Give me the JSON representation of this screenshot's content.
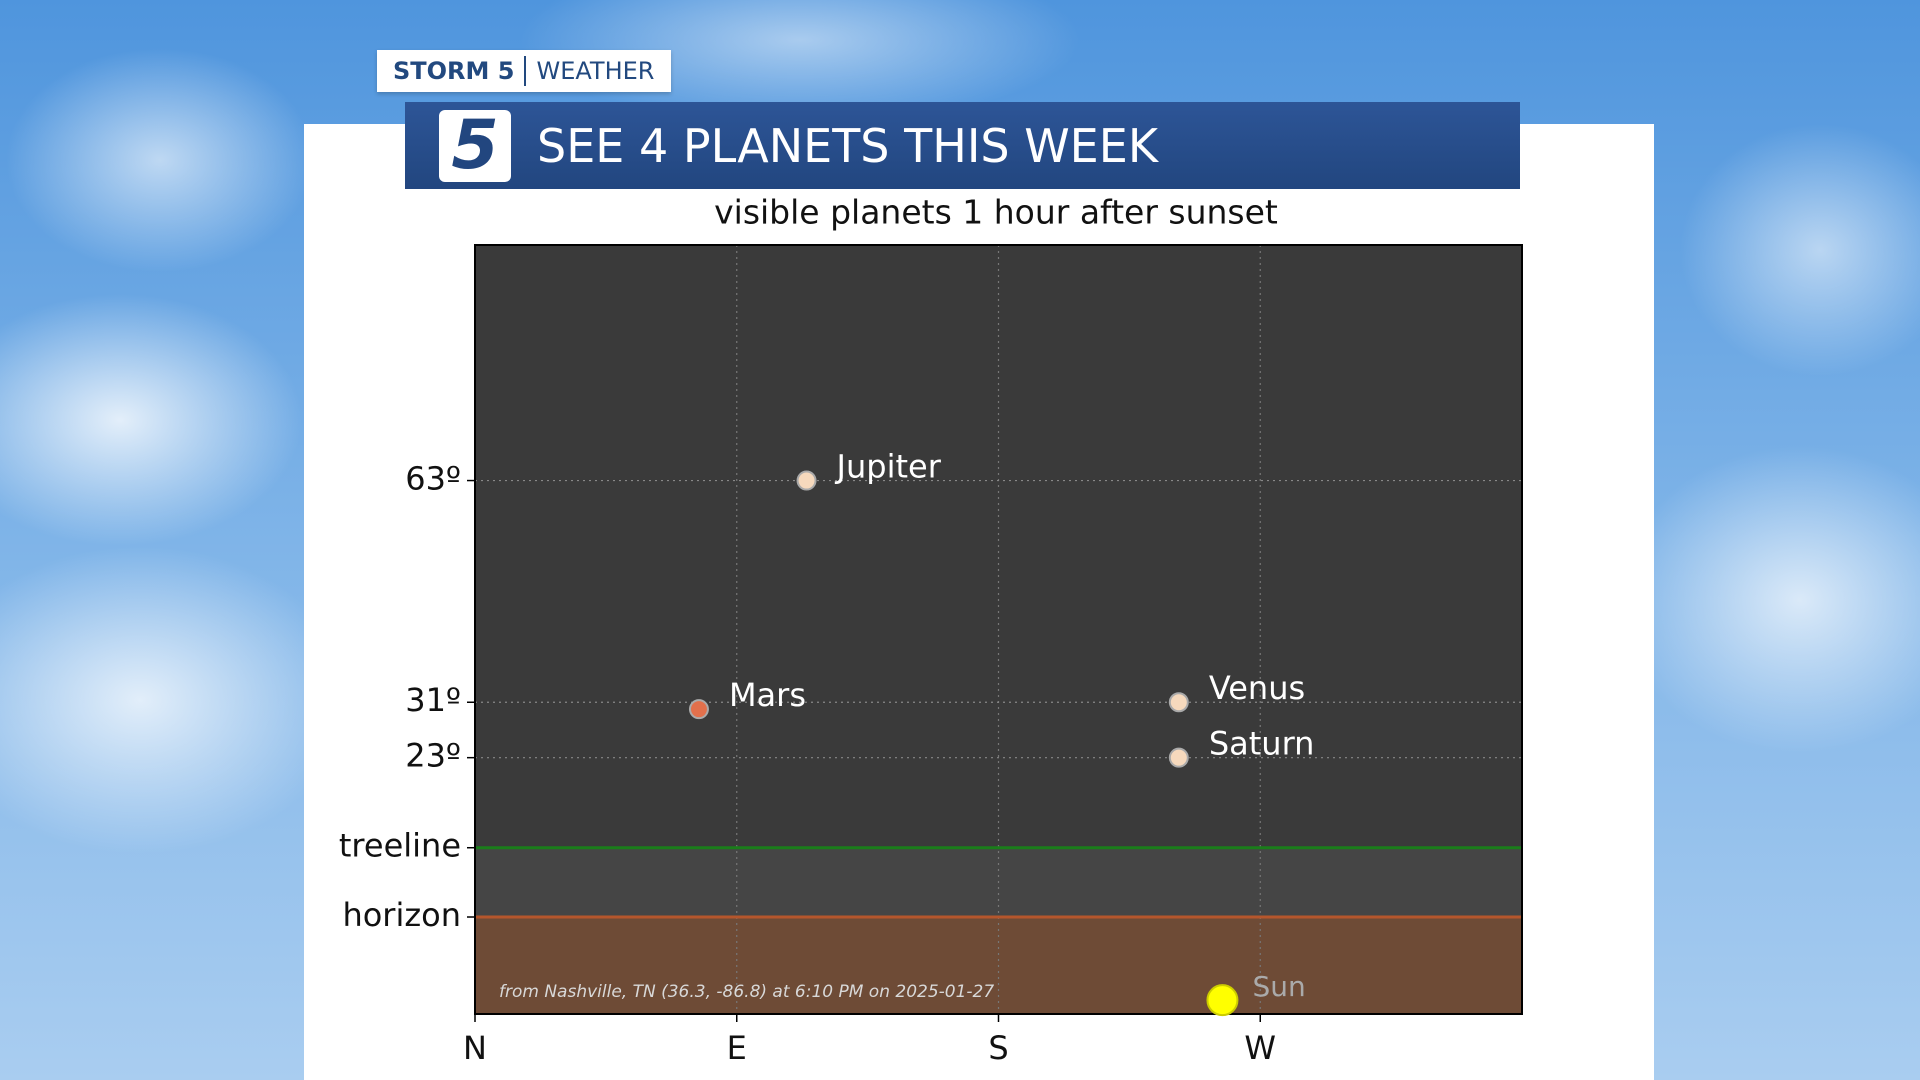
{
  "header": {
    "brand": "STORM 5",
    "section": "WEATHER",
    "logo": "5",
    "headline": "SEE 4 PLANETS THIS WEEK"
  },
  "chart_data": {
    "type": "scatter",
    "title": "visible planets 1 hour after sunset",
    "annotation": "from Nashville, TN (36.3, -86.8) at 6:10 PM on 2025-01-27",
    "xlim": [
      0,
      360
    ],
    "xticks": [
      {
        "value": 0,
        "label": "N"
      },
      {
        "value": 90,
        "label": "E"
      },
      {
        "value": 180,
        "label": "S"
      },
      {
        "value": 270,
        "label": "W"
      }
    ],
    "ylim": [
      -14,
      97
    ],
    "yticks": [
      {
        "value": 0,
        "label": "horizon"
      },
      {
        "value": 10,
        "label": "treeline"
      },
      {
        "value": 23,
        "label": "23º"
      },
      {
        "value": 31,
        "label": "31º"
      },
      {
        "value": 63,
        "label": "63º"
      }
    ],
    "grid": true,
    "series": [
      {
        "name": "Jupiter",
        "color": "#f6d9bd",
        "x": [
          114
        ],
        "values": [
          63
        ]
      },
      {
        "name": "Mars",
        "color": "#e2704c",
        "x": [
          77
        ],
        "values": [
          30
        ]
      },
      {
        "name": "Venus",
        "color": "#f6d9bd",
        "x": [
          242
        ],
        "values": [
          31
        ]
      },
      {
        "name": "Saturn",
        "color": "#f6d9bd",
        "x": [
          242
        ],
        "values": [
          23
        ]
      },
      {
        "name": "Sun",
        "color": "#ffff00",
        "x": [
          257
        ],
        "values": [
          -12
        ]
      }
    ]
  }
}
